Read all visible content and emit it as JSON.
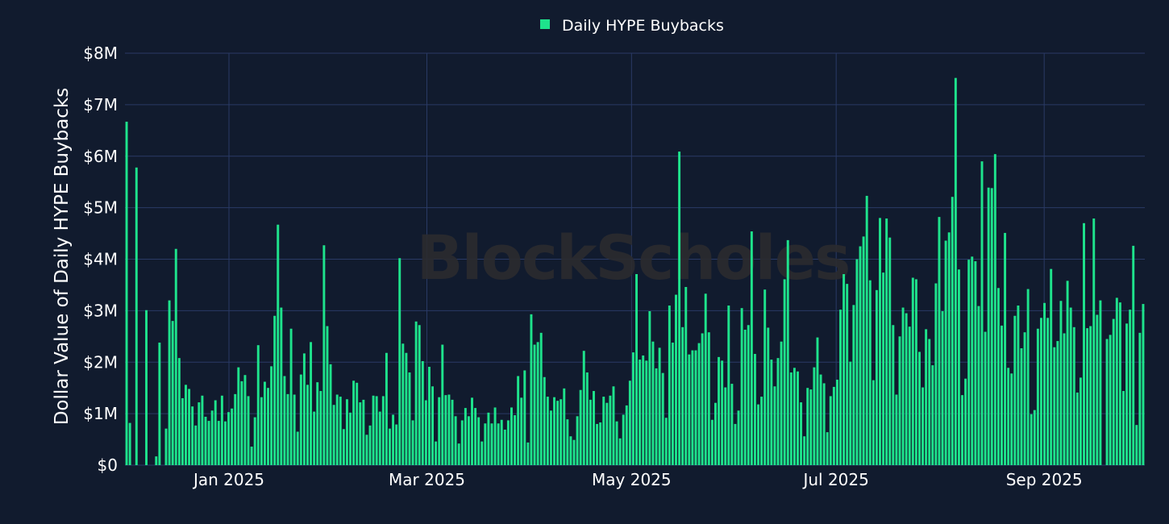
{
  "chart_data": {
    "type": "bar",
    "title": "",
    "ylabel": "Dollar Value of Daily HYPE Buybacks",
    "xlabel": "",
    "ylim": [
      0,
      8000000
    ],
    "y_ticks": [
      {
        "value": 0,
        "label": "$0"
      },
      {
        "value": 1000000,
        "label": "$1M"
      },
      {
        "value": 2000000,
        "label": "$2M"
      },
      {
        "value": 3000000,
        "label": "$3M"
      },
      {
        "value": 4000000,
        "label": "$4M"
      },
      {
        "value": 5000000,
        "label": "$5M"
      },
      {
        "value": 6000000,
        "label": "$6M"
      },
      {
        "value": 7000000,
        "label": "$7M"
      },
      {
        "value": 8000000,
        "label": "$8M"
      }
    ],
    "x_ticks": [
      "Jan 2025",
      "Mar 2025",
      "May 2025",
      "Jul 2025",
      "Sep 2025"
    ],
    "start_date": "2024-12-01",
    "end_date": "2025-10-01",
    "grid": true,
    "legend_position": "top-center",
    "series": [
      {
        "name": "Daily HYPE Buybacks",
        "color": "#1ee38c",
        "values": [
          6.67,
          0.82,
          0,
          5.78,
          0,
          0,
          3.01,
          0,
          0,
          0.17,
          2.38,
          0,
          0.71,
          3.2,
          2.8,
          4.2,
          2.08,
          1.3,
          1.56,
          1.48,
          1.14,
          0.77,
          1.22,
          1.35,
          0.94,
          0.86,
          1.06,
          1.26,
          0.86,
          1.35,
          0.85,
          1.03,
          1.1,
          1.38,
          1.9,
          1.63,
          1.75,
          1.34,
          0.36,
          0.93,
          2.33,
          1.32,
          1.62,
          1.5,
          1.92,
          2.9,
          4.67,
          3.06,
          1.73,
          1.38,
          2.65,
          1.37,
          0.65,
          1.76,
          2.17,
          1.56,
          2.39,
          1.04,
          1.61,
          1.44,
          4.27,
          2.7,
          1.96,
          1.17,
          1.37,
          1.33,
          0.7,
          1.28,
          1.02,
          1.64,
          1.6,
          1.22,
          1.27,
          0.59,
          0.77,
          1.35,
          1.34,
          1.04,
          1.34,
          2.18,
          0.71,
          0.98,
          0.79,
          4.02,
          2.36,
          2.18,
          1.8,
          0.87,
          2.79,
          2.72,
          2.02,
          1.26,
          1.91,
          1.53,
          0.46,
          1.32,
          2.34,
          1.36,
          1.37,
          1.27,
          0.95,
          0.42,
          0.87,
          1.11,
          0.95,
          1.31,
          1.11,
          0.93,
          0.46,
          0.81,
          1.02,
          0.81,
          1.12,
          0.81,
          0.88,
          0.69,
          0.87,
          1.12,
          0.97,
          1.73,
          1.31,
          1.84,
          0.44,
          2.93,
          2.34,
          2.39,
          2.57,
          1.71,
          1.33,
          1.06,
          1.32,
          1.25,
          1.28,
          1.49,
          0.89,
          0.56,
          0.49,
          0.95,
          1.46,
          2.22,
          1.8,
          1.27,
          1.44,
          0.8,
          0.83,
          1.33,
          1.21,
          1.35,
          1.53,
          0.85,
          0.52,
          0.98,
          1.16,
          1.64,
          2.19,
          3.71,
          2.05,
          2.13,
          2.03,
          2.99,
          2.4,
          1.88,
          2.28,
          1.79,
          0.92,
          3.1,
          2.38,
          3.31,
          6.09,
          2.68,
          3.46,
          2.15,
          2.23,
          2.23,
          2.37,
          2.56,
          3.33,
          2.58,
          0.88,
          1.21,
          2.1,
          2.03,
          1.51,
          3.1,
          1.58,
          0.8,
          1.06,
          3.05,
          2.63,
          2.72,
          4.54,
          2.16,
          1.18,
          1.33,
          3.41,
          2.67,
          2.05,
          1.53,
          2.08,
          2.4,
          3.61,
          4.37,
          1.8,
          1.89,
          1.82,
          1.22,
          0.56,
          1.5,
          1.47,
          1.9,
          2.48,
          1.76,
          1.59,
          0.64,
          1.34,
          1.52,
          1.66,
          3.02,
          3.71,
          3.52,
          2.01,
          3.11,
          4.0,
          4.25,
          4.44,
          5.23,
          3.59,
          1.65,
          3.4,
          4.8,
          3.74,
          4.79,
          4.42,
          2.72,
          1.37,
          2.5,
          3.06,
          2.95,
          2.69,
          3.64,
          3.61,
          2.2,
          1.51,
          2.64,
          2.45,
          1.94,
          3.53,
          4.82,
          2.99,
          4.36,
          4.52,
          5.21,
          7.52,
          3.8,
          1.36,
          1.68,
          3.99,
          4.05,
          3.96,
          3.09,
          5.9,
          2.59,
          5.39,
          5.38,
          6.04,
          3.44,
          2.71,
          4.51,
          1.89,
          1.78,
          2.9,
          3.1,
          2.27,
          2.58,
          3.42,
          0.99,
          1.07,
          2.65,
          2.86,
          3.15,
          2.86,
          3.81,
          2.29,
          2.41,
          3.19,
          2.56,
          3.58,
          3.06,
          2.68,
          1.41,
          1.7,
          4.7,
          2.66,
          2.7,
          4.79,
          2.92,
          3.2,
          0,
          2.45,
          2.53,
          2.84,
          3.25,
          3.16,
          1.44,
          2.75,
          3.02,
          4.26,
          0.78,
          2.57,
          3.13
        ]
      }
    ]
  },
  "legend": {
    "label": "Daily HYPE Buybacks"
  },
  "watermark": "BlockScholes"
}
